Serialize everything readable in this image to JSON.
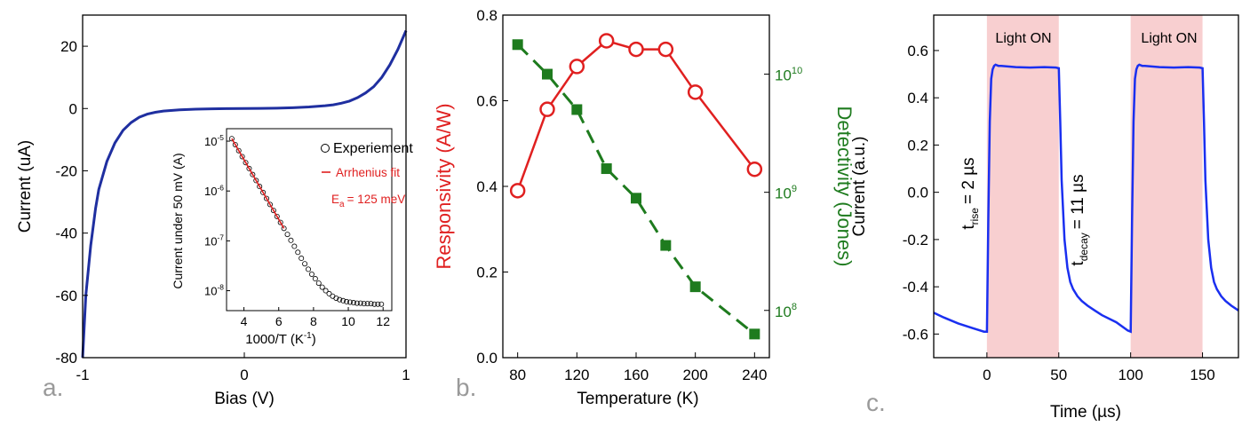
{
  "panels": {
    "a": {
      "label": "a."
    },
    "b": {
      "label": "b."
    },
    "c": {
      "label": "c."
    }
  },
  "chart_data": [
    {
      "id": "a",
      "type": "line",
      "xlabel": "Bias (V)",
      "ylabel": "Current (uA)",
      "xlim": [
        -1,
        1
      ],
      "ylim": [
        -80,
        30
      ],
      "xticks": [
        "-1",
        "0",
        "1"
      ],
      "yticks": [
        "20",
        "0",
        "-20",
        "-40",
        "-60",
        "-80"
      ],
      "color": "#1f2fa0",
      "series": [
        {
          "x": [
            -1.0,
            -0.98,
            -0.95,
            -0.92,
            -0.9,
            -0.85,
            -0.8,
            -0.75,
            -0.7,
            -0.65,
            -0.6,
            -0.55,
            -0.5,
            -0.4,
            -0.3,
            -0.2,
            -0.1,
            0.0,
            0.1,
            0.2,
            0.3,
            0.4,
            0.5,
            0.55,
            0.6,
            0.65,
            0.7,
            0.75,
            0.8,
            0.85,
            0.9,
            0.95,
            1.0
          ],
          "y": [
            -80,
            -60,
            -44,
            -32,
            -26,
            -17,
            -11,
            -7,
            -4.5,
            -2.8,
            -1.8,
            -1.2,
            -0.8,
            -0.4,
            -0.2,
            -0.1,
            -0.05,
            0,
            0.05,
            0.1,
            0.25,
            0.5,
            0.9,
            1.2,
            1.7,
            2.4,
            3.5,
            5,
            7,
            10,
            14,
            19,
            25
          ]
        }
      ],
      "inset": {
        "type": "scatter",
        "xlabel": "1000/T (K",
        "xlabel_sup": "-1",
        "xlabel_close": ")",
        "ylabel": "Current under 50 mV (A)",
        "xlim": [
          3,
          12.5
        ],
        "ylim_log10": [
          -8.4,
          -4.75
        ],
        "xticks": [
          "4",
          "6",
          "8",
          "10",
          "12"
        ],
        "yticks": [
          {
            "base": "10",
            "exp": "-5"
          },
          {
            "base": "10",
            "exp": "-6"
          },
          {
            "base": "10",
            "exp": "-7"
          },
          {
            "base": "10",
            "exp": "-8"
          }
        ],
        "legend": {
          "experiment": "Experiement",
          "fit": "Arrhenius fit",
          "ea_prefix": "E",
          "ea_sub": "a",
          "ea_value": "= 125 meV"
        },
        "fit_color": "#e02020",
        "points_x": [
          3.3,
          3.5,
          3.7,
          3.9,
          4.1,
          4.3,
          4.5,
          4.7,
          4.9,
          5.1,
          5.3,
          5.5,
          5.7,
          5.9,
          6.1,
          6.3,
          6.5,
          6.7,
          6.9,
          7.1,
          7.3,
          7.5,
          7.7,
          7.9,
          8.1,
          8.3,
          8.5,
          8.7,
          8.9,
          9.1,
          9.3,
          9.5,
          9.7,
          9.9,
          10.1,
          10.3,
          10.5,
          10.7,
          10.9,
          11.1,
          11.3,
          11.5,
          11.7,
          11.9
        ],
        "points_log10y": [
          -4.95,
          -5.07,
          -5.19,
          -5.31,
          -5.43,
          -5.55,
          -5.67,
          -5.79,
          -5.91,
          -6.03,
          -6.15,
          -6.27,
          -6.39,
          -6.51,
          -6.63,
          -6.75,
          -6.87,
          -6.99,
          -7.11,
          -7.23,
          -7.35,
          -7.46,
          -7.57,
          -7.67,
          -7.76,
          -7.85,
          -7.93,
          -8.0,
          -8.06,
          -8.11,
          -8.15,
          -8.18,
          -8.2,
          -8.22,
          -8.23,
          -8.24,
          -8.25,
          -8.25,
          -8.26,
          -8.26,
          -8.26,
          -8.27,
          -8.27,
          -8.27
        ],
        "fit_x": [
          3.3,
          6.3
        ],
        "fit_log10y": [
          -4.95,
          -6.75
        ]
      }
    },
    {
      "id": "b",
      "type": "line",
      "xlabel": "Temperature (K)",
      "ylabel_left": "Responsivity (A/W)",
      "ylabel_right": "Detectivity (Jones)",
      "xlim": [
        70,
        250
      ],
      "ylim_left": [
        0,
        0.8
      ],
      "ylim_right_log10": [
        7.6,
        10.5
      ],
      "xticks": [
        "80",
        "120",
        "160",
        "200",
        "240"
      ],
      "yticks_left": [
        "0.0",
        "0.2",
        "0.4",
        "0.6",
        "0.8"
      ],
      "yticks_right": [
        {
          "base": "10",
          "exp": "8"
        },
        {
          "base": "10",
          "exp": "9"
        },
        {
          "base": "10",
          "exp": "10"
        }
      ],
      "series": [
        {
          "name": "Responsivity",
          "color": "#e02020",
          "axis": "left",
          "marker": "circle",
          "x": [
            80,
            100,
            120,
            140,
            160,
            180,
            200,
            240
          ],
          "y": [
            0.39,
            0.58,
            0.68,
            0.74,
            0.72,
            0.72,
            0.62,
            0.44
          ]
        },
        {
          "name": "Detectivity",
          "color": "#1e7b1e",
          "axis": "right",
          "marker": "square",
          "x": [
            80,
            100,
            120,
            140,
            160,
            180,
            200,
            240
          ],
          "log10y": [
            10.25,
            10.0,
            9.7,
            9.2,
            8.95,
            8.55,
            8.2,
            7.8
          ]
        }
      ]
    },
    {
      "id": "c",
      "type": "line",
      "xlabel": "Time (µs)",
      "ylabel": "Current (a.u.)",
      "xlim": [
        -37,
        175
      ],
      "ylim": [
        -0.7,
        0.75
      ],
      "xticks": [
        "0",
        "50",
        "100",
        "150"
      ],
      "yticks": [
        "0.6",
        "0.4",
        "0.2",
        "0.0",
        "-0.2",
        "-0.4",
        "-0.6"
      ],
      "color": "#1a2ff0",
      "shade_color": "#f8cfd0",
      "light_on": [
        [
          0,
          50
        ],
        [
          100,
          150
        ]
      ],
      "light_on_label": "Light ON",
      "t_rise": {
        "prefix": "t",
        "sub": "rise",
        "value": "= 2 µs"
      },
      "t_decay": {
        "prefix": "t",
        "sub": "decay",
        "value": "= 11 µs"
      },
      "series": [
        {
          "x": [
            -37,
            -30,
            -20,
            -10,
            -2,
            0,
            1,
            2,
            3,
            4,
            5,
            6,
            8,
            10,
            20,
            30,
            40,
            48,
            50,
            51,
            52,
            54,
            56,
            58,
            60,
            63,
            66,
            70,
            75,
            80,
            90,
            98,
            100,
            101,
            102,
            103,
            104,
            105,
            106,
            108,
            110,
            120,
            130,
            140,
            148,
            150,
            151,
            152,
            154,
            156,
            158,
            160,
            163,
            166,
            170,
            175
          ],
          "y": [
            -0.51,
            -0.53,
            -0.555,
            -0.575,
            -0.59,
            -0.59,
            -0.1,
            0.3,
            0.48,
            0.52,
            0.535,
            0.54,
            0.535,
            0.535,
            0.53,
            0.528,
            0.53,
            0.528,
            0.525,
            0.3,
            0.05,
            -0.2,
            -0.32,
            -0.38,
            -0.41,
            -0.44,
            -0.46,
            -0.48,
            -0.5,
            -0.52,
            -0.55,
            -0.585,
            -0.59,
            -0.1,
            0.3,
            0.48,
            0.52,
            0.535,
            0.54,
            0.535,
            0.535,
            0.53,
            0.528,
            0.53,
            0.528,
            0.525,
            0.3,
            0.05,
            -0.2,
            -0.32,
            -0.38,
            -0.41,
            -0.44,
            -0.46,
            -0.48,
            -0.5
          ]
        }
      ]
    }
  ]
}
